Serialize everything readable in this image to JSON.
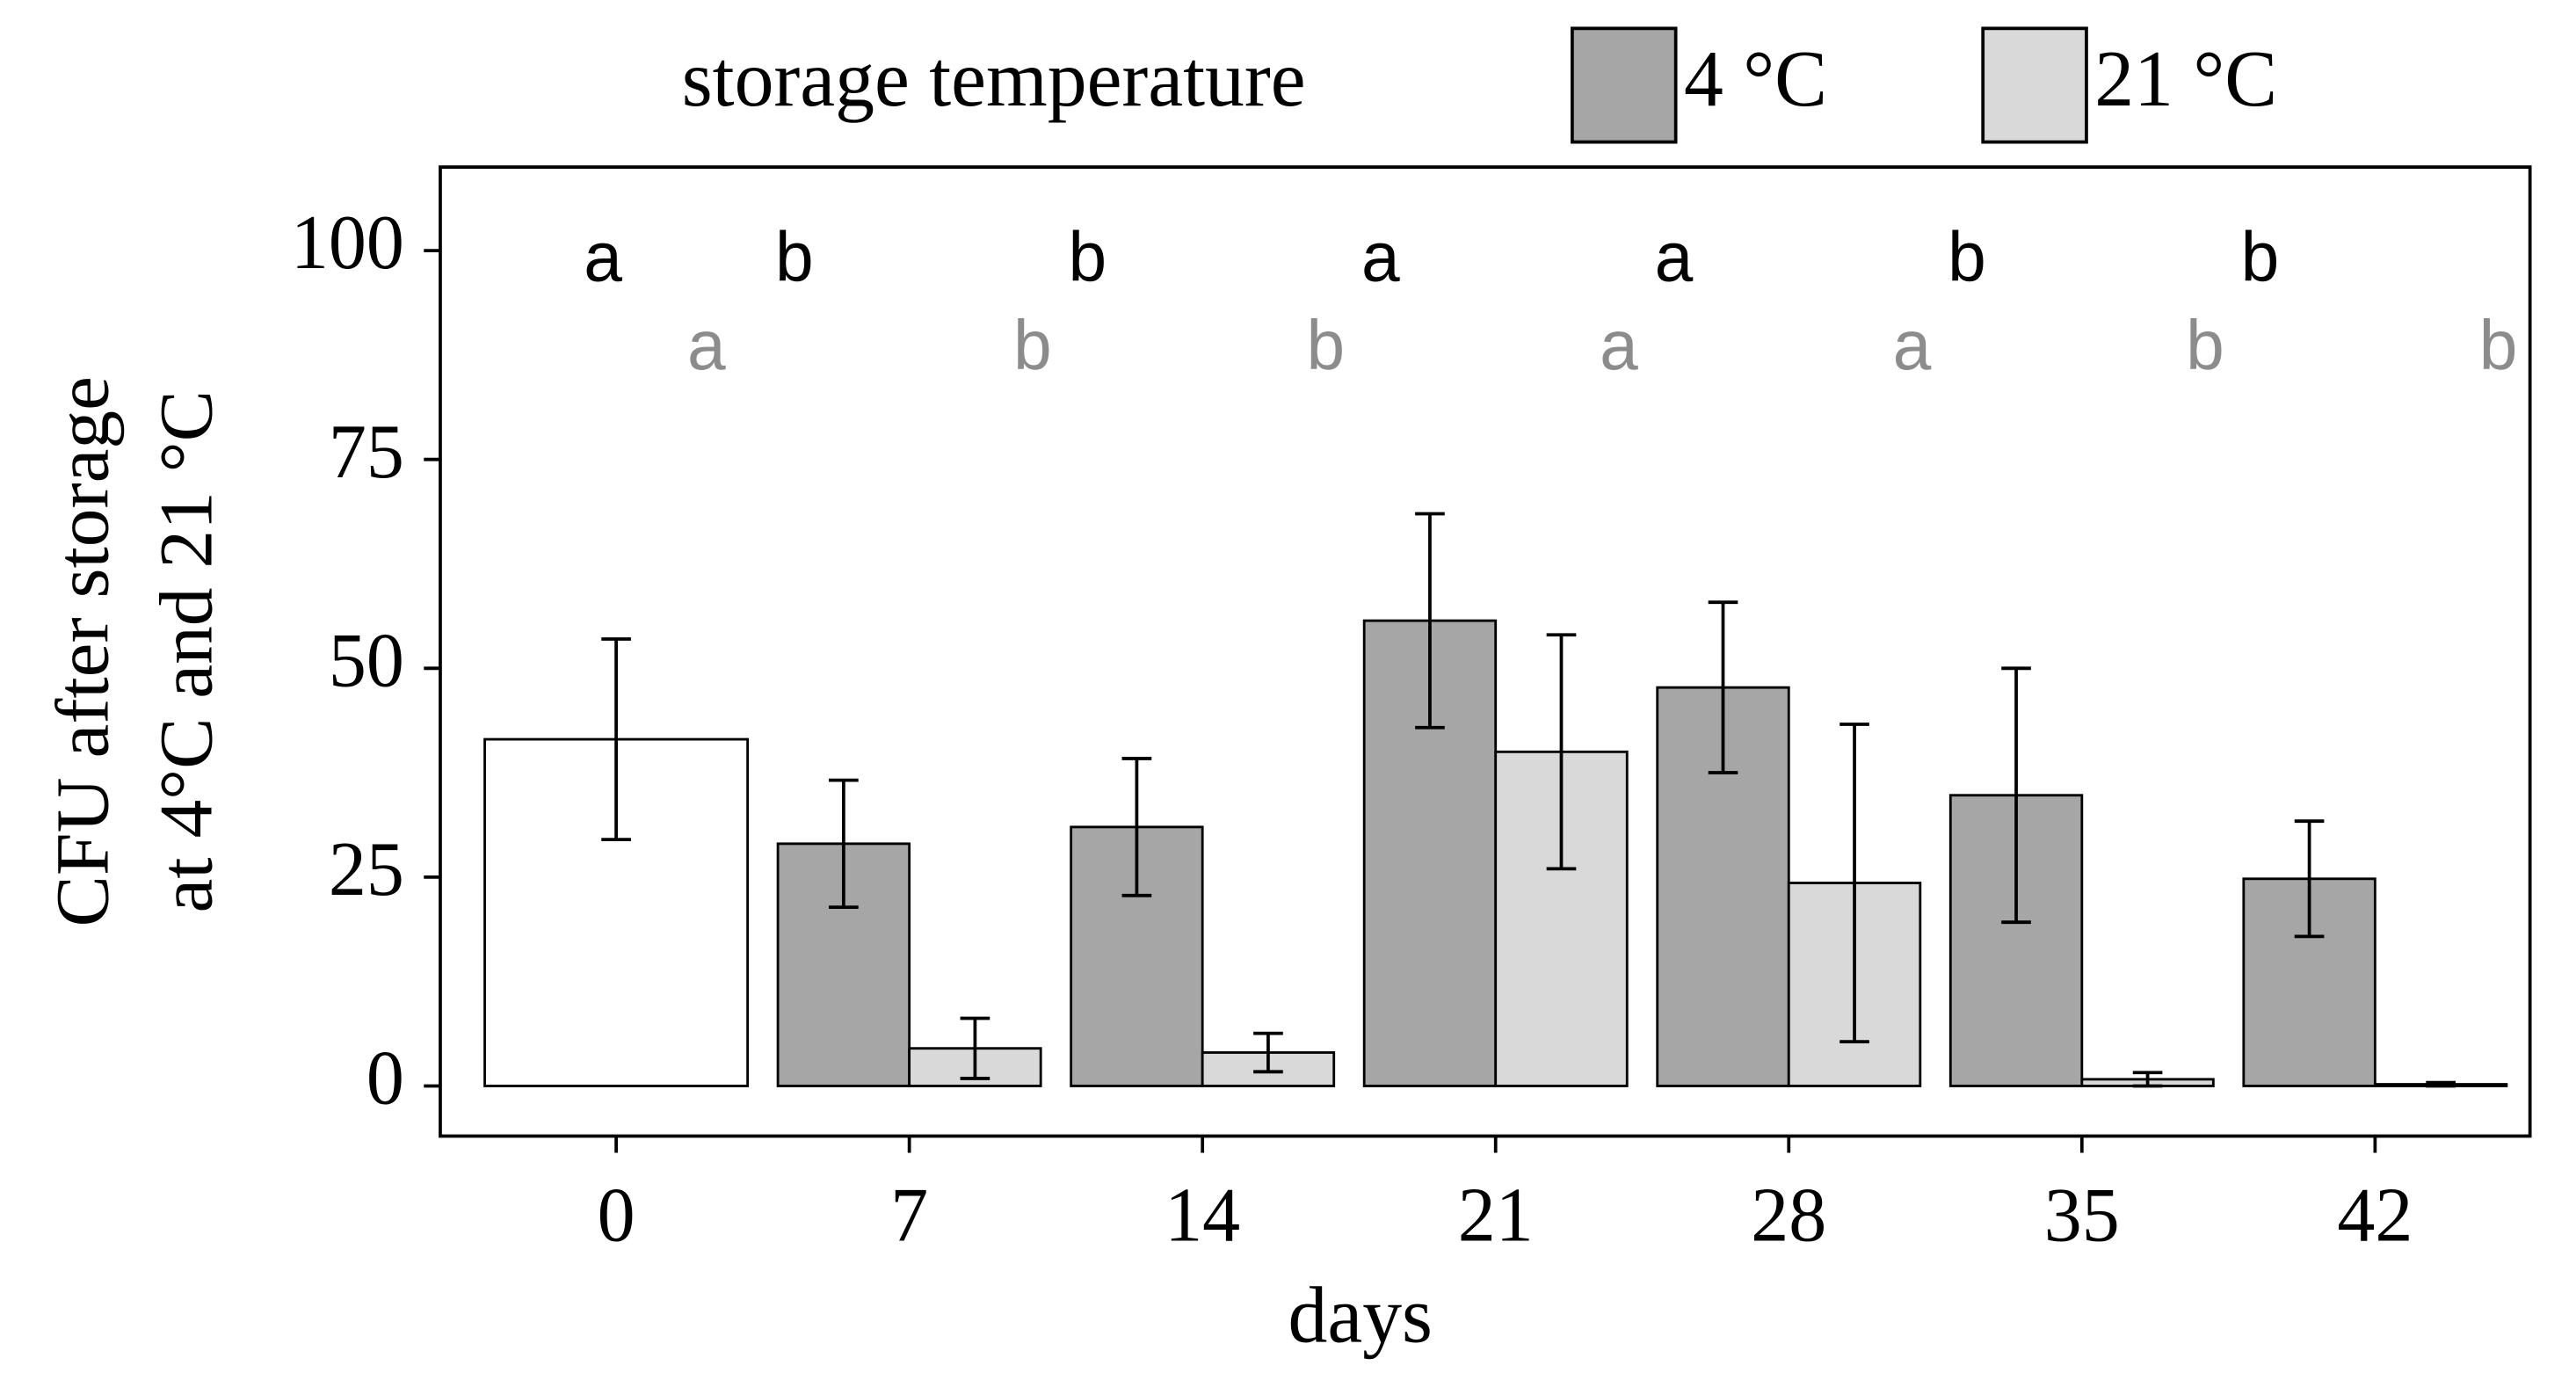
{
  "chart_data": {
    "type": "bar",
    "x_label": "days",
    "y_label": [
      "CFU after storage",
      "at 4°C and 21 °C"
    ],
    "legend_title": "storage temperature",
    "legend": "top",
    "x": [
      0,
      7,
      14,
      21,
      28,
      35,
      42
    ],
    "xlim": [
      -4.2,
      45.7
    ],
    "xticks": [
      0,
      7,
      14,
      21,
      28,
      35,
      42
    ],
    "ylim": [
      -6,
      110
    ],
    "yticks": [
      0,
      25,
      50,
      75,
      100
    ],
    "baseline": {
      "value": 41.5,
      "error": 12,
      "color": "#ffffff"
    },
    "series": [
      {
        "name": "4 °C",
        "color": "#a6a6a6",
        "letter_color": "#000000",
        "values": [
          null,
          29,
          31,
          55.7,
          47.7,
          34.8,
          24.8
        ],
        "errors": [
          null,
          7.6,
          8.2,
          12.8,
          10.2,
          15.2,
          6.9
        ],
        "letters": [
          "a",
          "b",
          "b",
          "a",
          "a",
          "b",
          "b"
        ]
      },
      {
        "name": "21 °C",
        "color": "#d9d9d9",
        "letter_color": "#8c8c8c",
        "values": [
          null,
          4.5,
          4,
          40,
          24.3,
          0.8,
          0.2
        ],
        "errors": [
          null,
          3.6,
          2.3,
          14,
          19,
          0.8,
          0.2
        ],
        "letters": [
          "a",
          "b",
          "b",
          "a",
          "a",
          "b",
          "b"
        ]
      }
    ]
  }
}
